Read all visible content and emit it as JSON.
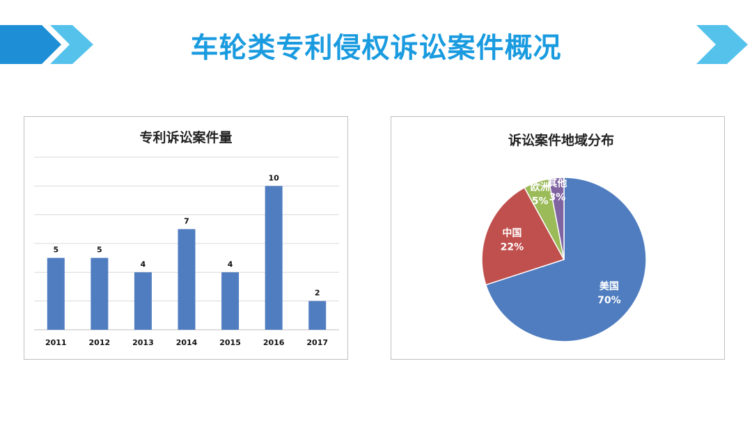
{
  "slide": {
    "title": "车轮类专利侵权诉讼案件概况",
    "title_color": "#1a9be0",
    "arrow_colors": [
      "#1e8fd6",
      "#55c2ec"
    ]
  },
  "chart_data": [
    {
      "type": "bar",
      "title": "专利诉讼案件量",
      "categories": [
        "2011",
        "2012",
        "2013",
        "2014",
        "2015",
        "2016",
        "2017"
      ],
      "values": [
        5,
        5,
        4,
        7,
        4,
        10,
        2
      ],
      "ylim": [
        0,
        12
      ],
      "grid": true,
      "bar_color": "#4f7dc0"
    },
    {
      "type": "pie",
      "title": "诉讼案件地域分布",
      "slices": [
        {
          "label": "美国",
          "value": 70,
          "pct": "70%",
          "color": "#4f7dc0",
          "text_color": "#ffffff"
        },
        {
          "label": "中国",
          "value": 22,
          "pct": "22%",
          "color": "#c0504d",
          "text_color": "#ffffff"
        },
        {
          "label": "欧洲",
          "value": 5,
          "pct": "5%",
          "color": "#9bbb59",
          "text_color": "#ffffff"
        },
        {
          "label": "其他",
          "value": 3,
          "pct": "3%",
          "color": "#8064a2",
          "text_color": "#ffffff"
        }
      ]
    }
  ]
}
